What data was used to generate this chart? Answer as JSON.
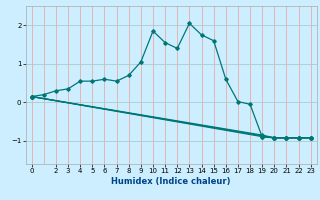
{
  "xlabel": "Humidex (Indice chaleur)",
  "bg_color": "#cceeff",
  "grid_color_v": "#e8aaaa",
  "grid_color_h": "#aacccc",
  "line_color": "#007777",
  "xlim": [
    -0.5,
    23.5
  ],
  "ylim": [
    -1.6,
    2.5
  ],
  "yticks": [
    -1,
    0,
    1,
    2
  ],
  "xticks": [
    0,
    2,
    3,
    4,
    5,
    6,
    7,
    8,
    9,
    10,
    11,
    12,
    13,
    14,
    15,
    16,
    17,
    18,
    19,
    20,
    21,
    22,
    23
  ],
  "all_xticks": [
    0,
    1,
    2,
    3,
    4,
    5,
    6,
    7,
    8,
    9,
    10,
    11,
    12,
    13,
    14,
    15,
    16,
    17,
    18,
    19,
    20,
    21,
    22,
    23
  ],
  "series1_x": [
    0,
    1,
    2,
    3,
    4,
    5,
    6,
    7,
    8,
    9,
    10,
    11,
    12,
    13,
    14,
    15,
    16,
    17,
    18,
    19,
    20,
    21,
    22,
    23
  ],
  "series1_y": [
    0.15,
    0.2,
    0.3,
    0.35,
    0.55,
    0.55,
    0.6,
    0.55,
    0.7,
    1.05,
    1.85,
    1.55,
    1.4,
    2.05,
    1.75,
    1.6,
    0.6,
    0.02,
    -0.05,
    -0.9,
    -0.92,
    -0.92,
    -0.92,
    -0.92
  ],
  "series2_x": [
    0,
    19,
    20,
    21,
    22,
    23
  ],
  "series2_y": [
    0.15,
    -0.85,
    -0.92,
    -0.92,
    -0.92,
    -0.92
  ],
  "series3_x": [
    0,
    19,
    20,
    21,
    22,
    23
  ],
  "series3_y": [
    0.15,
    -0.87,
    -0.92,
    -0.92,
    -0.92,
    -0.92
  ],
  "series4_x": [
    0,
    19,
    20,
    21,
    22,
    23
  ],
  "series4_y": [
    0.15,
    -0.89,
    -0.92,
    -0.92,
    -0.92,
    -0.92
  ]
}
